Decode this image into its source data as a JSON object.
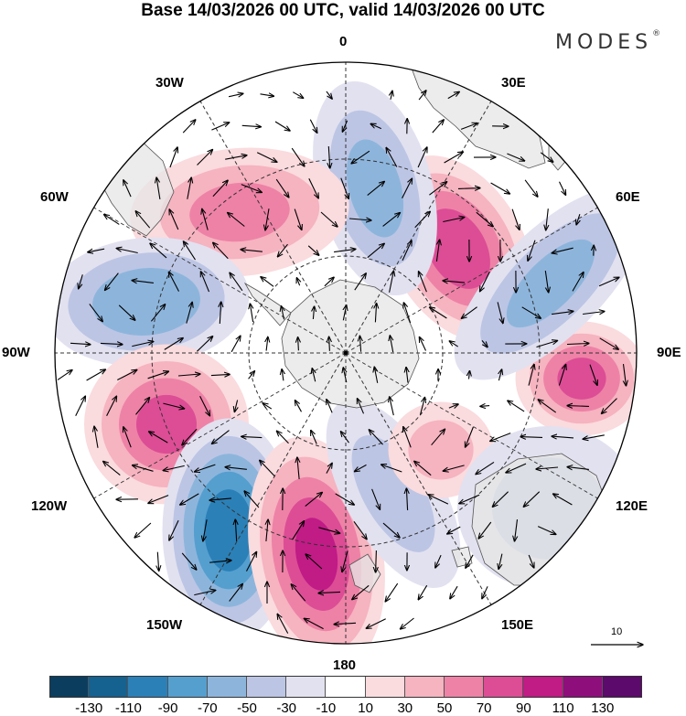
{
  "title": "Base 14/03/2026 00 UTC, valid 14/03/2026 00 UTC",
  "brand": "MODES",
  "brand_mark": "®",
  "longitude_labels": {
    "l0": "0",
    "l30e": "30E",
    "l60e": "60E",
    "l90e": "90E",
    "l120e": "120E",
    "l150e": "150E",
    "l180": "180",
    "l150w": "150W",
    "l120w": "120W",
    "l90w": "90W",
    "l60w": "60W",
    "l30w": "30W"
  },
  "vector_scale": {
    "label": "10"
  },
  "colorbar": {
    "colors": [
      "#0b3e5e",
      "#15618f",
      "#2b80b7",
      "#559fcf",
      "#8db5dc",
      "#bcc5e4",
      "#e2e1f0",
      "#ffffff",
      "#fadbde",
      "#f6b3c0",
      "#ee82a6",
      "#dc4d95",
      "#c11b86",
      "#8e0f7c",
      "#5c0a6b"
    ],
    "ticks": [
      "-130",
      "-110",
      "-90",
      "-70",
      "-50",
      "-30",
      "-10",
      "10",
      "30",
      "50",
      "70",
      "90",
      "110",
      "130"
    ]
  },
  "features": [
    {
      "name": "anomaly-positive-southern-indian-ocean",
      "value": 90
    },
    {
      "name": "anomaly-positive-east-indian-ocean",
      "value": 80
    },
    {
      "name": "anomaly-negative-west-indian-ocean",
      "value": -60
    },
    {
      "name": "anomaly-negative-south-atlantic",
      "value": -60
    },
    {
      "name": "anomaly-positive-south-atlantic-west",
      "value": 60
    },
    {
      "name": "anomaly-negative-drake-passage",
      "value": -70
    },
    {
      "name": "anomaly-positive-southeast-pacific",
      "value": 80
    },
    {
      "name": "anomaly-negative-south-pacific",
      "value": -110
    },
    {
      "name": "anomaly-positive-south-pacific-central",
      "value": 100
    },
    {
      "name": "anomaly-negative-tasman-sea",
      "value": -40
    },
    {
      "name": "anomaly-positive-south-of-australia",
      "value": 40
    },
    {
      "name": "anomaly-negative-australia",
      "value": -40
    }
  ]
}
